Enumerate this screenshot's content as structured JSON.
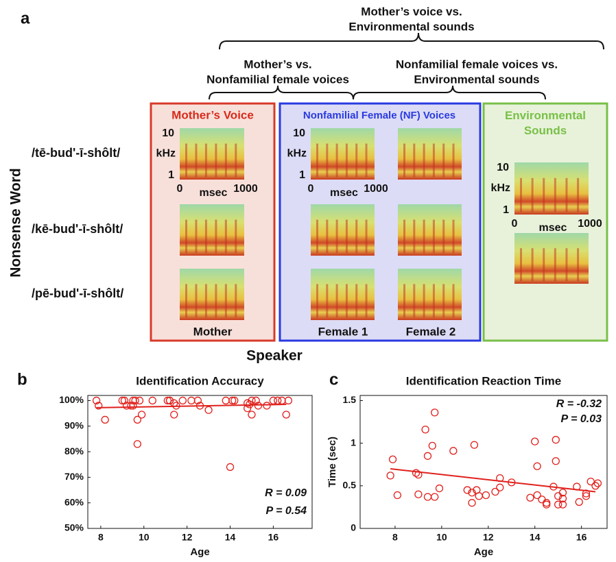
{
  "panel_a": {
    "label": "a",
    "comparisons": [
      [
        "Mother’s voice vs.",
        "Environmental sounds"
      ],
      [
        "Mother’s vs.",
        "Nonfamilial female voices"
      ],
      [
        "Nonfamilial female voices vs.",
        "Environmental sounds"
      ]
    ],
    "groups": [
      "Mother’s Voice",
      "Nonfamilial Female (NF) Voices",
      "Environmental Sounds"
    ],
    "words": [
      "/tē-bud'-ī-shôlt/",
      "/kē-bud'-ī-shôlt/",
      "/pē-bud'-ī-shôlt/"
    ],
    "speakers": [
      "Mother",
      "Female 1",
      "Female 2"
    ],
    "y_axis_label": "Nonsense Word",
    "x_axis_label": "Speaker",
    "spectrogram_y": [
      "10",
      "kHz",
      "1"
    ],
    "spectrogram_x": [
      "0",
      "msec",
      "1000"
    ]
  },
  "chart_data": [
    {
      "type": "scatter",
      "label": "b",
      "title": "Identification Accuracy",
      "x_label": "Age",
      "color": "#e0201c",
      "x": [
        7.8,
        7.9,
        8.2,
        9,
        9.1,
        9.2,
        9.4,
        9.5,
        9.6,
        9.7,
        9.7,
        9.8,
        9.9,
        10.4,
        11.1,
        11.2,
        11.4,
        11.4,
        11.5,
        11.8,
        12.2,
        12.5,
        12.6,
        13,
        13.8,
        14,
        14.1,
        14.2,
        14.8,
        14.8,
        15,
        15,
        15.2,
        15.3,
        15.7,
        16,
        16.2,
        16.4,
        16.6,
        16.7,
        14.9,
        11.2,
        9.5
      ],
      "y": [
        100,
        98,
        92.5,
        100,
        100,
        98,
        98,
        100,
        100,
        83,
        92.5,
        100,
        94.5,
        100,
        100,
        100,
        94.5,
        99,
        98,
        100,
        100,
        100,
        98,
        96.3,
        100,
        74,
        100,
        100,
        99,
        97,
        94.5,
        100,
        100,
        98,
        98,
        100,
        100,
        100,
        94.5,
        100,
        98.5,
        100,
        98
      ],
      "fit": {
        "x": [
          7.8,
          16.6
        ],
        "y": [
          97.2,
          98.5
        ]
      },
      "xlim": [
        7.4,
        17.8
      ],
      "xticks": [
        8,
        10,
        12,
        14,
        16
      ],
      "ylim": [
        50,
        102
      ],
      "yticks": [
        {
          "value": 50,
          "label": "50%"
        },
        {
          "value": 60,
          "label": "60%"
        },
        {
          "value": 70,
          "label": "70%"
        },
        {
          "value": 80,
          "label": "80%"
        },
        {
          "value": 90,
          "label": "90%"
        },
        {
          "value": 100,
          "label": "100%"
        }
      ],
      "annotations": [
        "R = 0.09",
        "P = 0.54"
      ]
    },
    {
      "type": "scatter",
      "label": "c",
      "title": "Identification Reaction Time",
      "x_label": "Age",
      "y_label": "Time (sec)",
      "color": "#e0201c",
      "x": [
        7.8,
        7.9,
        8.1,
        8.9,
        9.0,
        9.0,
        9.3,
        9.4,
        9.4,
        9.6,
        9.7,
        9.7,
        9.9,
        10.5,
        11.1,
        11.3,
        11.3,
        11.4,
        11.5,
        11.6,
        11.9,
        12.3,
        12.5,
        12.5,
        13.0,
        13.8,
        14.0,
        14.1,
        14.1,
        14.3,
        14.5,
        14.5,
        14.8,
        14.9,
        14.9,
        15.0,
        15.0,
        15.2,
        15.2,
        15.2,
        15.8,
        15.9,
        16.2,
        16.2,
        16.4,
        16.6,
        16.7
      ],
      "y": [
        0.62,
        0.81,
        0.39,
        0.65,
        0.63,
        0.4,
        1.16,
        0.85,
        0.37,
        0.97,
        1.36,
        0.37,
        0.47,
        0.91,
        0.45,
        0.42,
        0.3,
        0.98,
        0.45,
        0.38,
        0.39,
        0.43,
        0.59,
        0.48,
        0.54,
        0.36,
        1.02,
        0.73,
        0.39,
        0.34,
        0.3,
        0.28,
        0.49,
        1.04,
        0.79,
        0.38,
        0.28,
        0.42,
        0.28,
        0.35,
        0.49,
        0.31,
        0.38,
        0.41,
        0.55,
        0.5,
        0.53
      ],
      "fit": {
        "x": [
          7.8,
          16.6
        ],
        "y": [
          0.7,
          0.43
        ]
      },
      "xlim": [
        6.5,
        17.1
      ],
      "xticks": [
        8,
        10,
        12,
        14,
        16
      ],
      "ylim": [
        0,
        1.56
      ],
      "yticks": [
        0,
        0.5,
        1,
        1.5
      ],
      "annotations": [
        "R = -0.32",
        "P = 0.03"
      ]
    }
  ]
}
